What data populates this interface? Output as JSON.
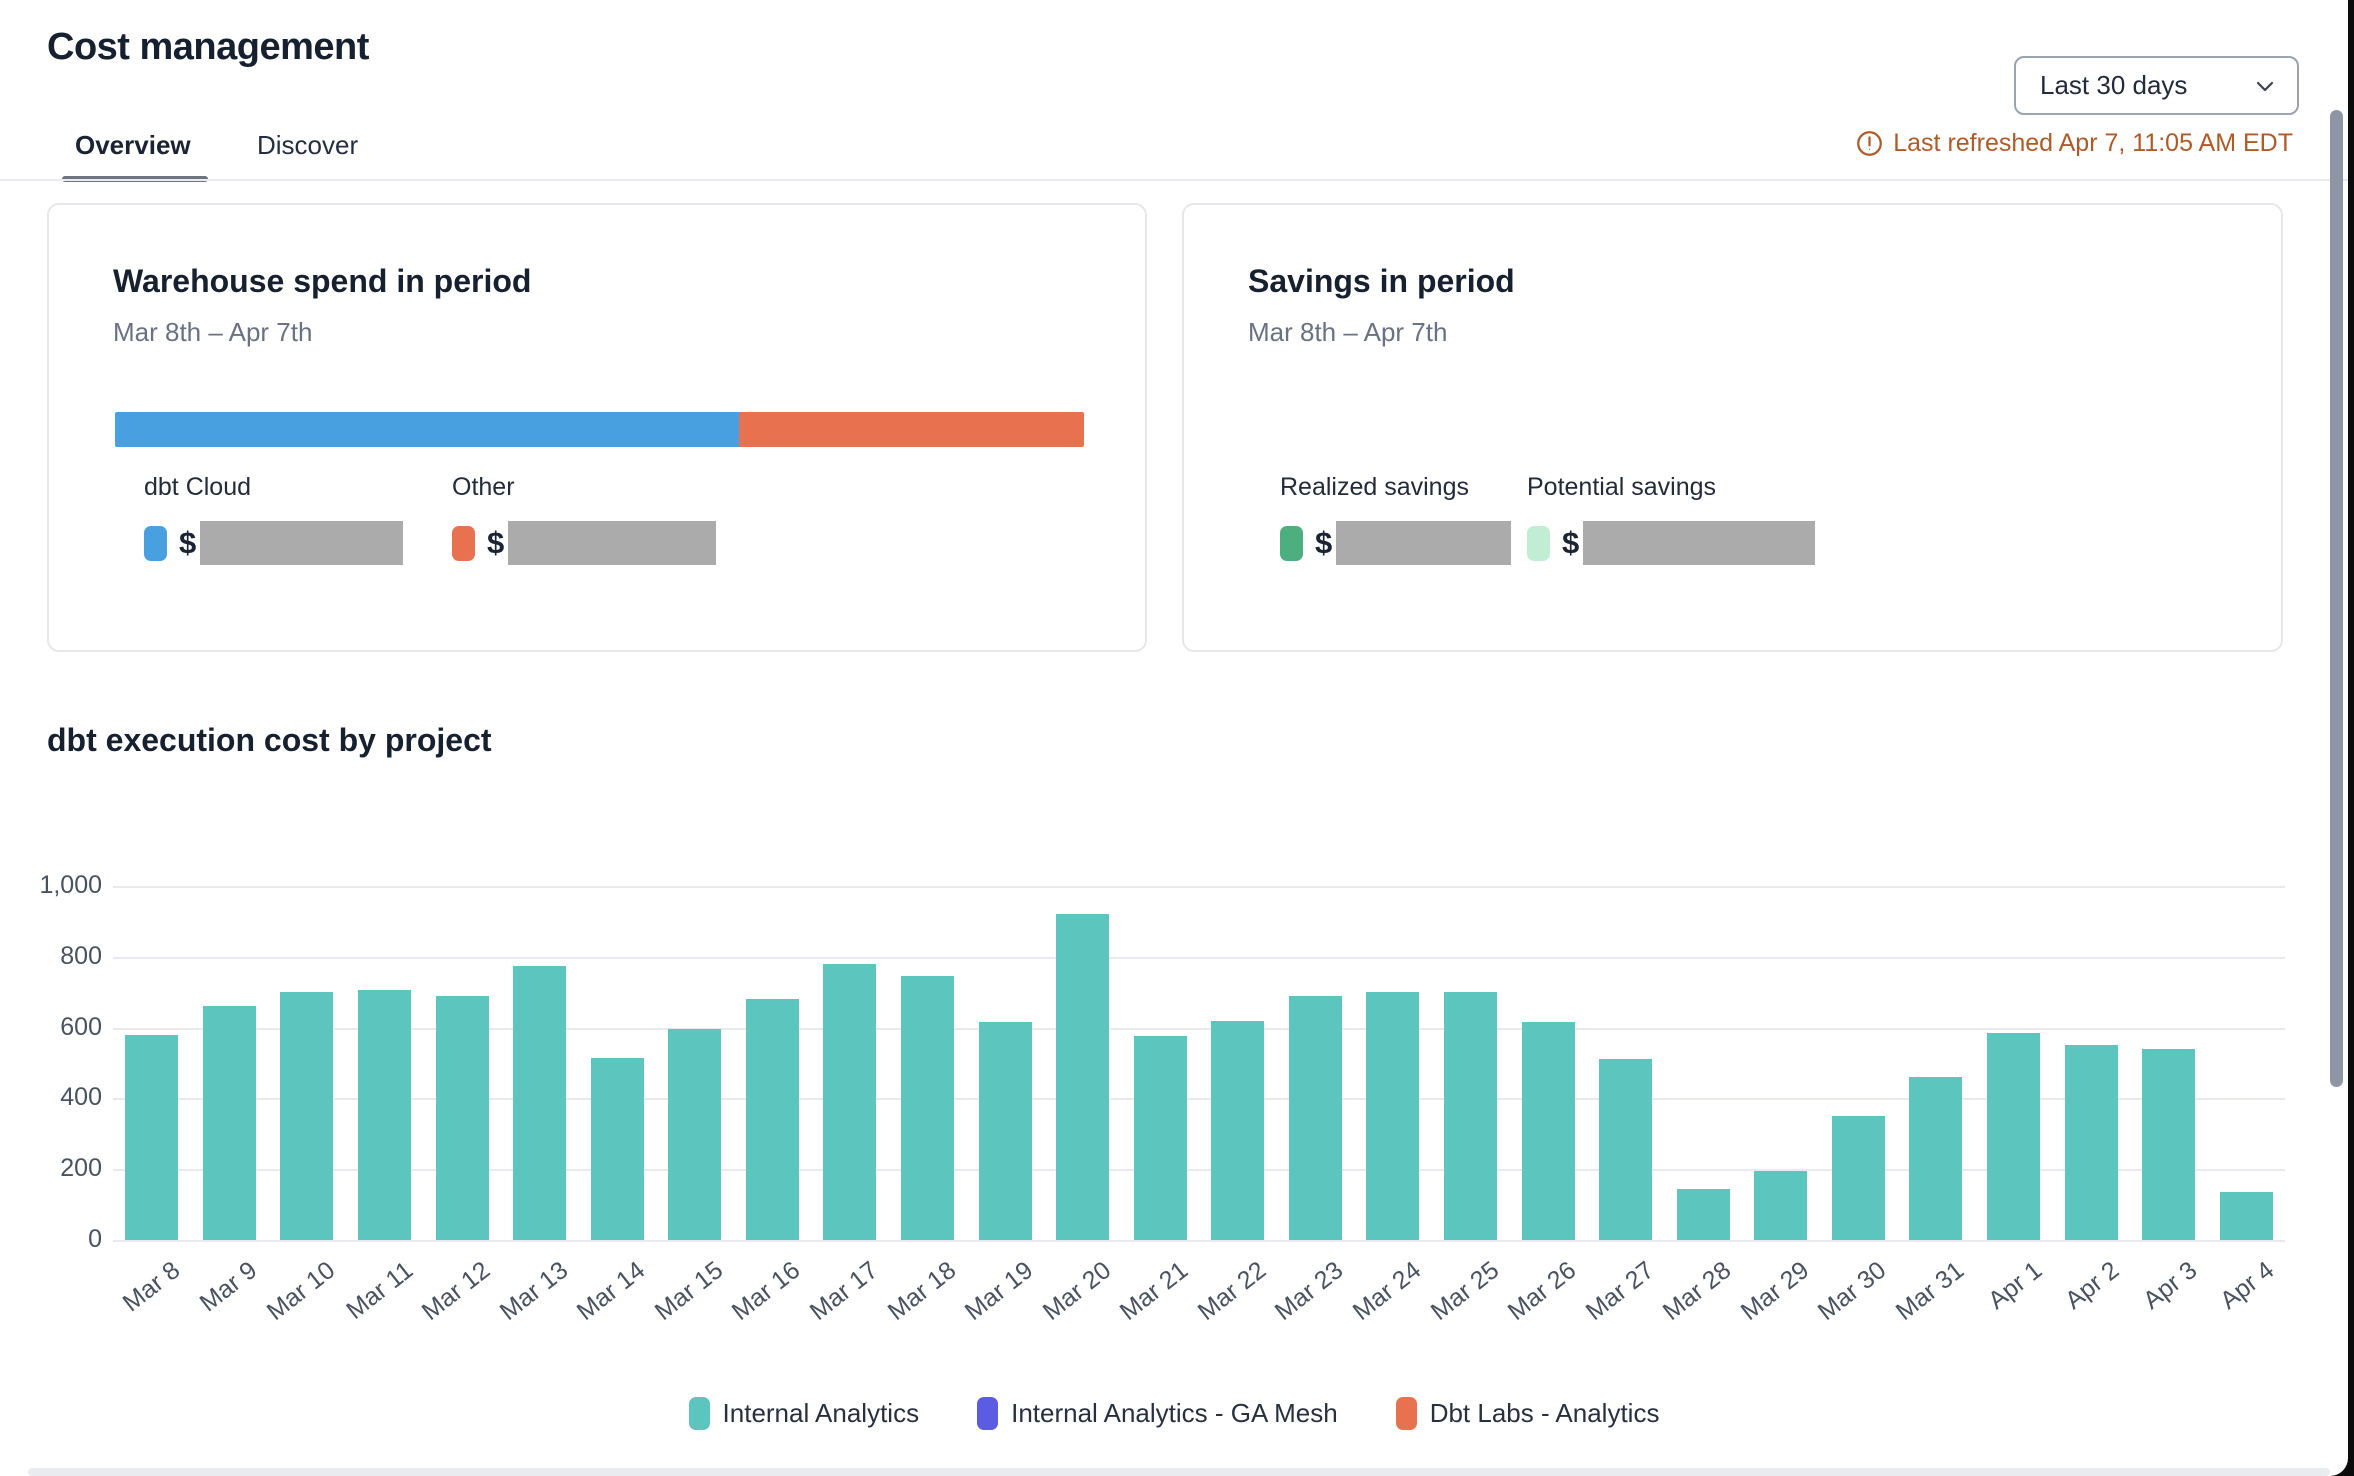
{
  "header": {
    "title": "Cost management",
    "date_range_value": "Last 30 days",
    "last_refreshed": "Last refreshed Apr 7, 11:05 AM EDT",
    "last_refreshed_color": "#ad5b28",
    "icons": {
      "chevron": "chevron-down-icon",
      "alert": "alert-circle-icon"
    }
  },
  "tabs": [
    {
      "label": "Overview",
      "active": true
    },
    {
      "label": "Discover",
      "active": false
    }
  ],
  "cards": {
    "warehouse_spend": {
      "title": "Warehouse spend in period",
      "subtitle": "Mar 8th – Apr 7th",
      "bar": {
        "segments": [
          {
            "name": "dbt Cloud",
            "color": "#49A0E1",
            "fraction": 0.644
          },
          {
            "name": "Other",
            "color": "#E8714F",
            "fraction": 0.356
          }
        ]
      },
      "legend": [
        {
          "label": "dbt Cloud",
          "color": "#49A0E1",
          "value_prefix": "$",
          "value_redacted": true
        },
        {
          "label": "Other",
          "color": "#E8714F",
          "value_prefix": "$",
          "value_redacted": true
        }
      ]
    },
    "savings": {
      "title": "Savings in period",
      "subtitle": "Mar 8th – Apr 7th",
      "legend": [
        {
          "label": "Realized savings",
          "color": "#4DAF7F",
          "value_prefix": "$",
          "value_redacted": true
        },
        {
          "label": "Potential savings",
          "color": "#C2EDD5",
          "value_prefix": "$",
          "value_redacted": true
        }
      ]
    }
  },
  "chart_data": {
    "type": "bar",
    "title": "dbt execution cost by project",
    "categories": [
      "Mar 8",
      "Mar 9",
      "Mar 10",
      "Mar 11",
      "Mar 12",
      "Mar 13",
      "Mar 14",
      "Mar 15",
      "Mar 16",
      "Mar 17",
      "Mar 18",
      "Mar 19",
      "Mar 20",
      "Mar 21",
      "Mar 22",
      "Mar 23",
      "Mar 24",
      "Mar 25",
      "Mar 26",
      "Mar 27",
      "Mar 28",
      "Mar 29",
      "Mar 30",
      "Mar 31",
      "Apr 1",
      "Apr 2",
      "Apr 3",
      "Apr 4"
    ],
    "series": [
      {
        "name": "Internal Analytics",
        "color": "#5CC5BE",
        "values": [
          580,
          660,
          700,
          705,
          690,
          775,
          515,
          595,
          680,
          780,
          745,
          615,
          920,
          575,
          620,
          690,
          700,
          700,
          615,
          510,
          145,
          195,
          350,
          460,
          585,
          550,
          540,
          135
        ]
      },
      {
        "name": "Internal Analytics - GA Mesh",
        "color": "#5B5CE2",
        "values": []
      },
      {
        "name": "Dbt Labs - Analytics",
        "color": "#E8714F",
        "values": []
      }
    ],
    "legend": [
      {
        "name": "Internal Analytics",
        "color": "#5CC5BE"
      },
      {
        "name": "Internal Analytics - GA Mesh",
        "color": "#5B5CE2"
      },
      {
        "name": "Dbt Labs - Analytics",
        "color": "#E8714F"
      }
    ],
    "xlabel": "",
    "ylabel": "",
    "ylim": [
      0,
      1000
    ],
    "yticks": [
      0,
      200,
      400,
      600,
      800,
      1000
    ],
    "ytick_labels": [
      "0",
      "200",
      "400",
      "600",
      "800",
      "1,000"
    ],
    "grid": true,
    "legend_position": "bottom"
  }
}
